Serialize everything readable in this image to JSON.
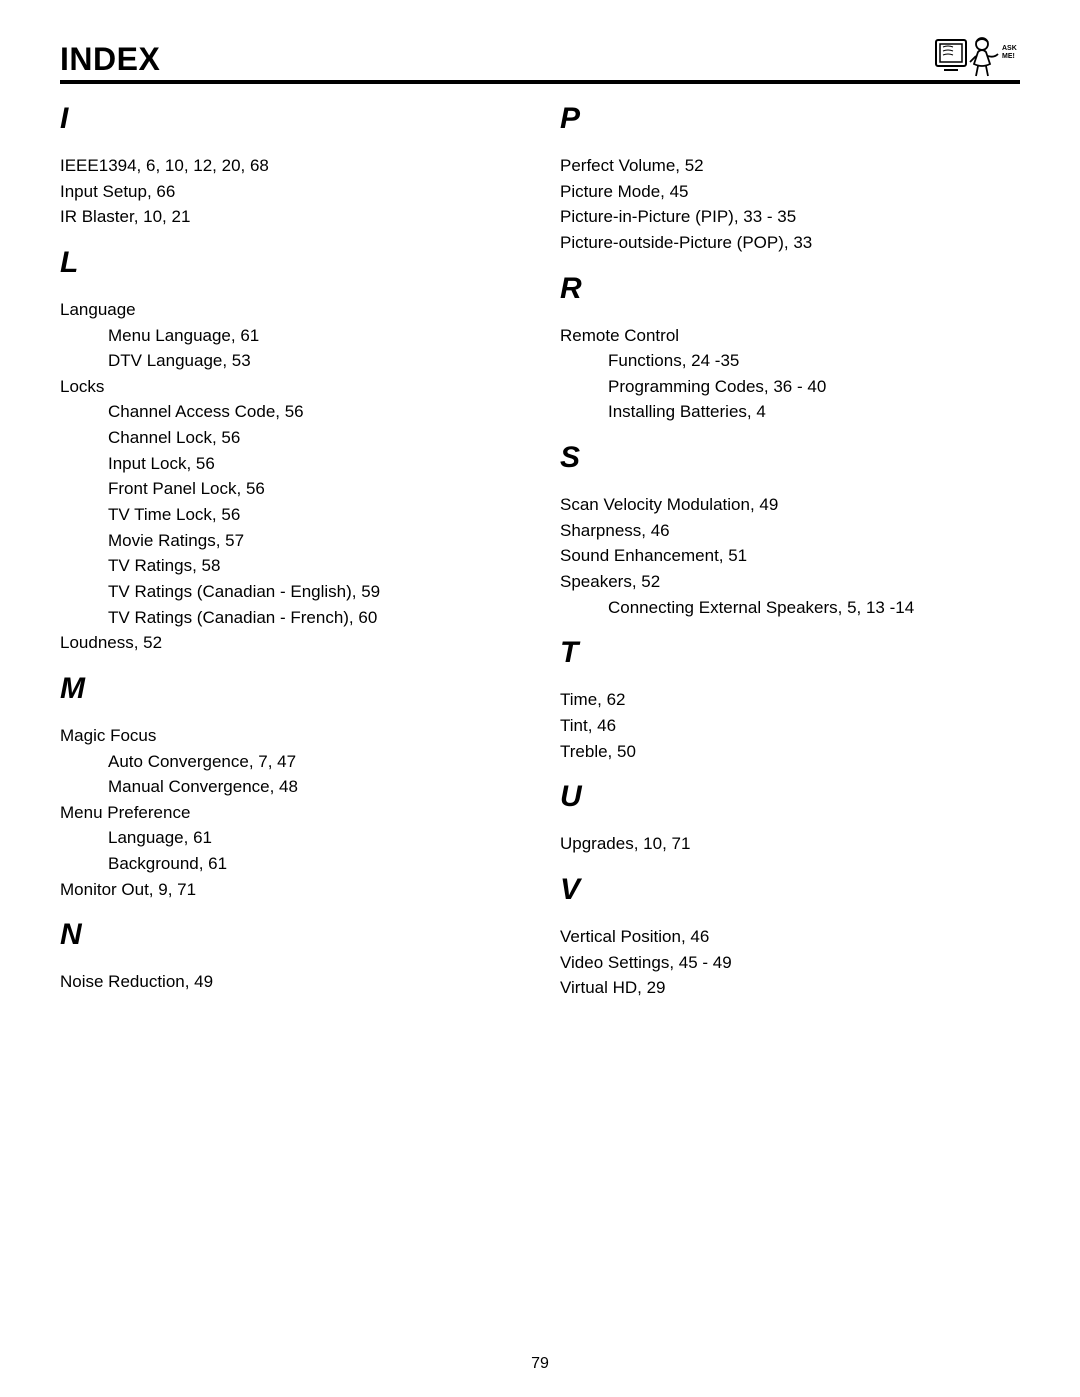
{
  "title": "INDEX",
  "page_number": "79",
  "ask_label": "ASK\nME!",
  "left_column": [
    {
      "type": "letter",
      "text": "I",
      "first": true
    },
    {
      "type": "entry",
      "text": "IEEE1394, 6, 10, 12, 20, 68"
    },
    {
      "type": "entry",
      "text": "Input Setup, 66"
    },
    {
      "type": "entry",
      "text": "IR Blaster, 10, 21"
    },
    {
      "type": "letter",
      "text": "L"
    },
    {
      "type": "entry",
      "text": "Language"
    },
    {
      "type": "sub",
      "text": "Menu Language, 61"
    },
    {
      "type": "sub",
      "text": "DTV Language, 53"
    },
    {
      "type": "entry",
      "text": "Locks"
    },
    {
      "type": "sub",
      "text": "Channel Access Code, 56"
    },
    {
      "type": "sub",
      "text": "Channel Lock, 56"
    },
    {
      "type": "sub",
      "text": "Input Lock, 56"
    },
    {
      "type": "sub",
      "text": "Front Panel Lock, 56"
    },
    {
      "type": "sub",
      "text": "TV Time Lock, 56"
    },
    {
      "type": "sub",
      "text": "Movie Ratings, 57"
    },
    {
      "type": "sub",
      "text": "TV Ratings, 58"
    },
    {
      "type": "sub",
      "text": "TV Ratings (Canadian - English), 59"
    },
    {
      "type": "sub",
      "text": "TV Ratings (Canadian - French), 60"
    },
    {
      "type": "entry",
      "text": "Loudness, 52"
    },
    {
      "type": "letter",
      "text": "M"
    },
    {
      "type": "entry",
      "text": "Magic Focus"
    },
    {
      "type": "sub",
      "text": "Auto Convergence, 7, 47"
    },
    {
      "type": "sub",
      "text": "Manual Convergence, 48"
    },
    {
      "type": "entry",
      "text": "Menu Preference"
    },
    {
      "type": "sub",
      "text": "Language, 61"
    },
    {
      "type": "sub",
      "text": "Background, 61"
    },
    {
      "type": "entry",
      "text": "Monitor Out, 9, 71"
    },
    {
      "type": "letter",
      "text": "N"
    },
    {
      "type": "entry",
      "text": "Noise Reduction, 49"
    }
  ],
  "right_column": [
    {
      "type": "letter",
      "text": "P",
      "first": true
    },
    {
      "type": "entry",
      "text": "Perfect Volume, 52"
    },
    {
      "type": "entry",
      "text": "Picture Mode, 45"
    },
    {
      "type": "entry",
      "text": "Picture-in-Picture (PIP), 33 - 35"
    },
    {
      "type": "entry",
      "text": "Picture-outside-Picture (POP), 33"
    },
    {
      "type": "letter",
      "text": "R"
    },
    {
      "type": "entry",
      "text": "Remote Control"
    },
    {
      "type": "sub",
      "text": "Functions, 24 -35"
    },
    {
      "type": "sub",
      "text": "Programming Codes, 36 - 40"
    },
    {
      "type": "sub",
      "text": "Installing Batteries, 4"
    },
    {
      "type": "letter",
      "text": "S"
    },
    {
      "type": "entry",
      "text": "Scan Velocity Modulation, 49"
    },
    {
      "type": "entry",
      "text": "Sharpness, 46"
    },
    {
      "type": "entry",
      "text": "Sound Enhancement, 51"
    },
    {
      "type": "entry",
      "text": "Speakers, 52"
    },
    {
      "type": "sub",
      "text": "Connecting External Speakers, 5, 13 -14"
    },
    {
      "type": "letter",
      "text": "T"
    },
    {
      "type": "entry",
      "text": "Time, 62"
    },
    {
      "type": "entry",
      "text": "Tint, 46"
    },
    {
      "type": "entry",
      "text": "Treble, 50"
    },
    {
      "type": "letter",
      "text": "U"
    },
    {
      "type": "entry",
      "text": "Upgrades, 10, 71"
    },
    {
      "type": "letter",
      "text": "V"
    },
    {
      "type": "entry",
      "text": "Vertical Position, 46"
    },
    {
      "type": "entry",
      "text": "Video Settings, 45 - 49"
    },
    {
      "type": "entry",
      "text": "Virtual HD, 29"
    }
  ]
}
